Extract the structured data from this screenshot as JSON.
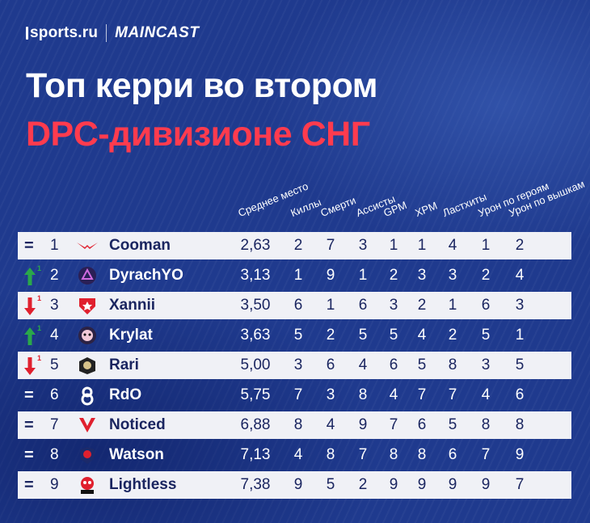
{
  "brand": {
    "site": "sports.ru",
    "partner": "MAINCAST"
  },
  "title": {
    "line1": "Топ керри во втором",
    "line2": "DPC-дивизионе СНГ"
  },
  "columns": [
    "Среднее место",
    "Киллы",
    "Смерти",
    "Ассисты",
    "GPM",
    "XPM",
    "Ластхиты",
    "Урон по героям",
    "Урон по вышкам"
  ],
  "rows": [
    {
      "move": "=",
      "move_type": "same",
      "change": "",
      "rank": "1",
      "player": "Cooman",
      "team_icon": "cooman-team-logo",
      "avg": "2,63",
      "stats": [
        "2",
        "7",
        "3",
        "1",
        "1",
        "4",
        "1",
        "2"
      ]
    },
    {
      "move": "↑",
      "move_type": "up",
      "change": "1",
      "rank": "2",
      "player": "DyrachYO",
      "team_icon": "dyrachyo-team-logo",
      "avg": "3,13",
      "stats": [
        "1",
        "9",
        "1",
        "2",
        "3",
        "3",
        "2",
        "4"
      ]
    },
    {
      "move": "↓",
      "move_type": "down",
      "change": "1",
      "rank": "3",
      "player": "Xannii",
      "team_icon": "xannii-team-logo",
      "avg": "3,50",
      "stats": [
        "6",
        "1",
        "6",
        "3",
        "2",
        "1",
        "6",
        "3"
      ]
    },
    {
      "move": "↑",
      "move_type": "up",
      "change": "1",
      "rank": "4",
      "player": "Krylat",
      "team_icon": "krylat-team-logo",
      "avg": "3,63",
      "stats": [
        "5",
        "2",
        "5",
        "5",
        "4",
        "2",
        "5",
        "1"
      ]
    },
    {
      "move": "↓",
      "move_type": "down",
      "change": "1",
      "rank": "5",
      "player": "Rari",
      "team_icon": "rari-team-logo",
      "avg": "5,00",
      "stats": [
        "3",
        "6",
        "4",
        "6",
        "5",
        "8",
        "3",
        "5"
      ]
    },
    {
      "move": "=",
      "move_type": "same",
      "change": "",
      "rank": "6",
      "player": "RdO",
      "team_icon": "rdo-team-logo",
      "avg": "5,75",
      "stats": [
        "7",
        "3",
        "8",
        "4",
        "7",
        "7",
        "4",
        "6"
      ]
    },
    {
      "move": "=",
      "move_type": "same",
      "change": "",
      "rank": "7",
      "player": "Noticed",
      "team_icon": "noticed-team-logo",
      "avg": "6,88",
      "stats": [
        "8",
        "4",
        "9",
        "7",
        "6",
        "5",
        "8",
        "8"
      ]
    },
    {
      "move": "=",
      "move_type": "same",
      "change": "",
      "rank": "8",
      "player": "Watson",
      "team_icon": "watson-team-logo",
      "avg": "7,13",
      "stats": [
        "4",
        "8",
        "7",
        "8",
        "8",
        "6",
        "7",
        "9"
      ]
    },
    {
      "move": "=",
      "move_type": "same",
      "change": "",
      "rank": "9",
      "player": "Lightless",
      "team_icon": "lightless-team-logo",
      "avg": "7,38",
      "stats": [
        "9",
        "5",
        "2",
        "9",
        "9",
        "9",
        "9",
        "7"
      ]
    }
  ],
  "colors": {
    "background": "#1f3a8e",
    "accent_red": "#ff3b4e",
    "row_light": "#f0f1f6",
    "up": "#2aa84a",
    "down": "#e0202e"
  }
}
